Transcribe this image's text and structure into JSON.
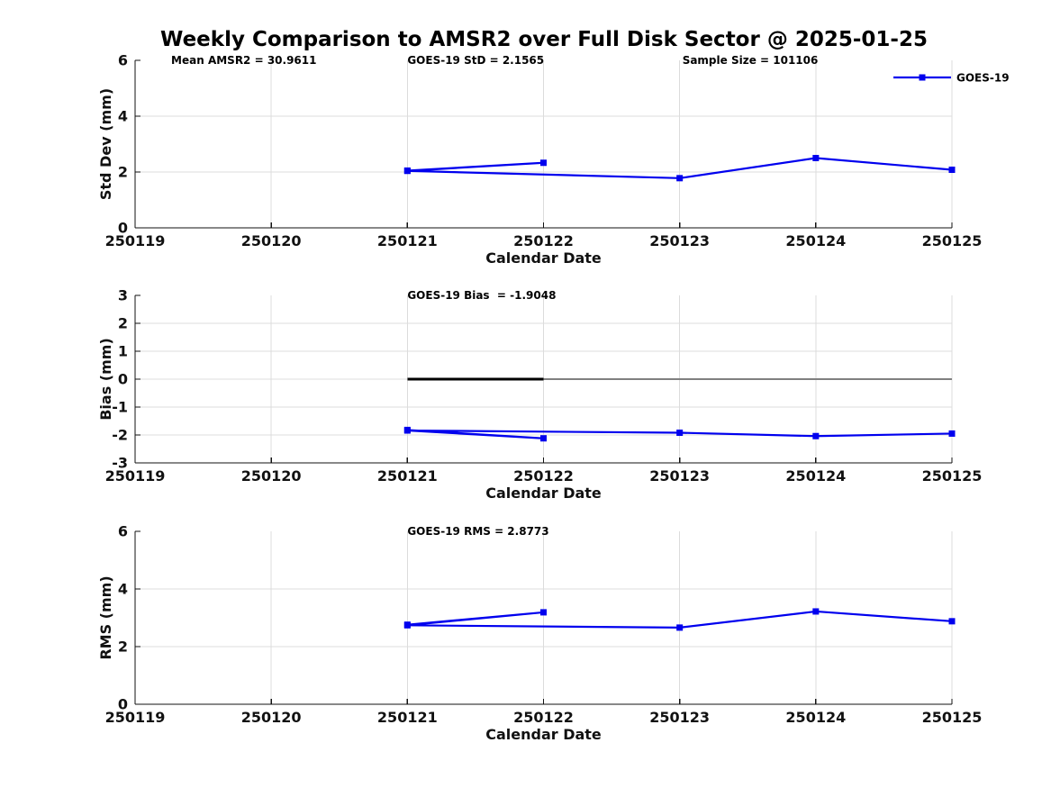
{
  "title": "Weekly Comparison to AMSR2 over Full Disk Sector @ 2025-01-25",
  "legend": {
    "label": "GOES-19"
  },
  "colors": {
    "series": "#0000EE",
    "grid": "#DCDCDC",
    "axis": "#111111",
    "text": "#000000",
    "zero_black": "#000000",
    "zero_gray": "#808080",
    "background": "#FFFFFF"
  },
  "x_axis": {
    "label": "Calendar Date",
    "tick_labels": [
      "250119",
      "250120",
      "250121",
      "250122",
      "250123",
      "250124",
      "250125"
    ],
    "tick_values": [
      250119,
      250120,
      250121,
      250122,
      250123,
      250124,
      250125
    ],
    "range": [
      250119,
      250125
    ]
  },
  "chart_data": [
    {
      "type": "line",
      "panel": "std-dev",
      "ylabel": "Std Dev (mm)",
      "ylim": [
        0,
        6
      ],
      "yticks": [
        0,
        2,
        4,
        6
      ],
      "grid_yticks": [
        2,
        4
      ],
      "grid": true,
      "annotations": [
        {
          "text": "Mean AMSR2 = 30.9611",
          "x": 250119.265
        },
        {
          "text": "GOES-19 StD = 2.1565",
          "x": 250121.0
        },
        {
          "text": "Sample Size = 101106",
          "x": 250123.02
        }
      ],
      "series": [
        {
          "name": "GOES-19",
          "points": [
            [
              250121,
              2.05
            ],
            [
              250122,
              2.33
            ],
            [
              250121,
              2.04
            ],
            [
              250123,
              1.78
            ],
            [
              250124,
              2.5
            ],
            [
              250125,
              2.08
            ]
          ]
        }
      ]
    },
    {
      "type": "line",
      "panel": "bias",
      "ylabel": "Bias (mm)",
      "ylim": [
        -3,
        3
      ],
      "yticks": [
        -3,
        -2,
        -1,
        0,
        1,
        2,
        3
      ],
      "grid_yticks": [
        -2,
        -1,
        0,
        1,
        2
      ],
      "grid": true,
      "annotations": [
        {
          "text": "GOES-19 Bias  = -1.9048",
          "x": 250121.0
        }
      ],
      "ref_lines": [
        {
          "y": 0,
          "x1": 250121,
          "x2": 250122,
          "color": "zero_black",
          "width": 2.6
        },
        {
          "y": 0,
          "x1": 250122,
          "x2": 250125,
          "color": "zero_gray",
          "width": 2
        }
      ],
      "series": [
        {
          "name": "GOES-19",
          "points": [
            [
              250121,
              -1.82
            ],
            [
              250122,
              -2.12
            ],
            [
              250121,
              -1.84
            ],
            [
              250123,
              -1.92
            ],
            [
              250124,
              -2.04
            ],
            [
              250125,
              -1.95
            ]
          ]
        }
      ]
    },
    {
      "type": "line",
      "panel": "rms",
      "ylabel": "RMS (mm)",
      "ylim": [
        0,
        6
      ],
      "yticks": [
        0,
        2,
        4,
        6
      ],
      "grid_yticks": [
        2,
        4
      ],
      "grid": true,
      "annotations": [
        {
          "text": "GOES-19 RMS = 2.8773",
          "x": 250121.0
        }
      ],
      "series": [
        {
          "name": "GOES-19",
          "points": [
            [
              250121,
              2.76
            ],
            [
              250122,
              3.19
            ],
            [
              250121,
              2.74
            ],
            [
              250123,
              2.66
            ],
            [
              250124,
              3.22
            ],
            [
              250125,
              2.88
            ]
          ]
        }
      ]
    }
  ]
}
